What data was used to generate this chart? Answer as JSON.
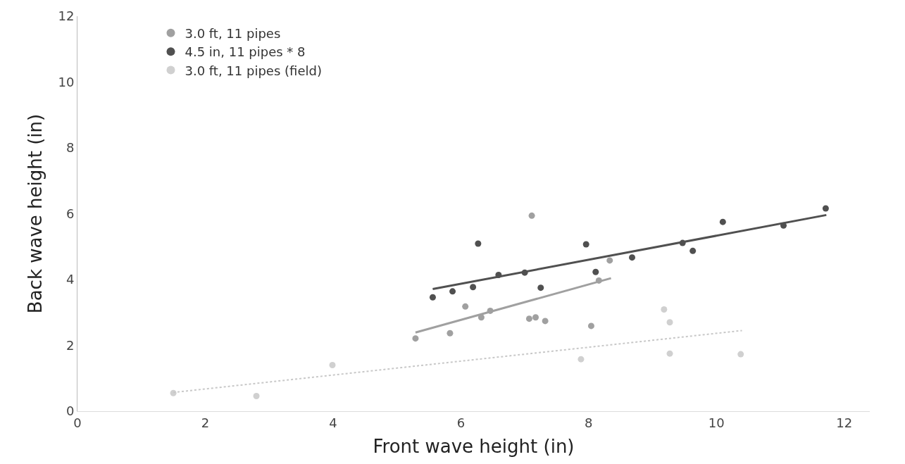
{
  "chart_data": {
    "type": "scatter",
    "xlabel": "Front wave height (in)",
    "ylabel": "Back wave height (in)",
    "xlim": [
      0,
      12.4
    ],
    "ylim": [
      0,
      12
    ],
    "xticks": [
      0,
      2,
      4,
      6,
      8,
      10,
      12
    ],
    "yticks": [
      0,
      2,
      4,
      6,
      8,
      10,
      12
    ],
    "legend": "top left",
    "marker": "circle",
    "series": [
      {
        "name": "3.0 ft, 11 pipes",
        "color": "#a0a0a0",
        "x": [
          7.11,
          6.07,
          6.32,
          6.46,
          5.83,
          5.29,
          7.07,
          7.17,
          7.32,
          8.04,
          8.33,
          8.16
        ],
        "values": [
          5.94,
          3.18,
          2.85,
          3.05,
          2.37,
          2.21,
          2.81,
          2.85,
          2.74,
          2.59,
          4.58,
          3.97
        ]
      },
      {
        "name": "4.5 in, 11 pipes * 8",
        "color": "#505050",
        "x": [
          5.56,
          5.87,
          6.19,
          6.27,
          6.59,
          7.0,
          7.25,
          7.96,
          8.11,
          8.68,
          9.47,
          9.63,
          10.1,
          11.05,
          11.71
        ],
        "values": [
          3.46,
          3.64,
          3.77,
          5.09,
          4.14,
          4.21,
          3.75,
          5.07,
          4.23,
          4.67,
          5.11,
          4.87,
          5.75,
          5.64,
          6.16
        ]
      },
      {
        "name": "3.0 ft, 11 pipes (field)",
        "color": "#d0d0d0",
        "x": [
          1.5,
          2.8,
          3.99,
          7.88,
          9.18,
          9.27,
          9.27,
          10.38
        ],
        "values": [
          0.55,
          0.46,
          1.4,
          1.58,
          3.09,
          2.7,
          1.75,
          1.73
        ]
      },
      {
        "type": "line",
        "color": "#a0a0a0",
        "marker": "none",
        "line_style": "solid",
        "x": [
          5.29,
          8.35
        ],
        "values": [
          2.39,
          4.04
        ]
      },
      {
        "type": "line",
        "color": "#505050",
        "marker": "none",
        "line_style": "solid",
        "x": [
          5.56,
          11.72
        ],
        "values": [
          3.71,
          5.96
        ]
      },
      {
        "type": "line",
        "color": "#c8c8c8",
        "marker": "none",
        "line_style": "dotted",
        "x": [
          1.5,
          10.4
        ],
        "values": [
          0.57,
          2.45
        ]
      }
    ]
  }
}
